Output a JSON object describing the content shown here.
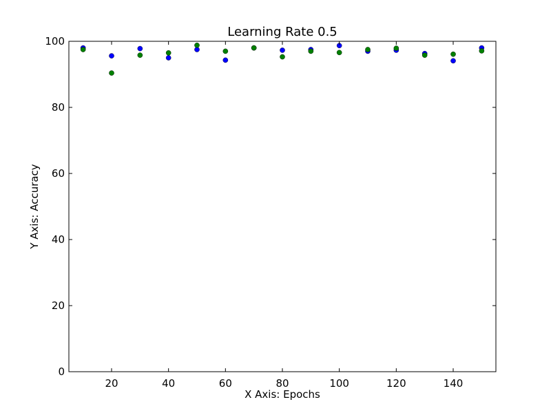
{
  "chart_data": {
    "type": "scatter",
    "title": "Learning Rate 0.5",
    "xlabel": "X Axis: Epochs",
    "ylabel": "Y Axis: Accuracy",
    "xlim": [
      5,
      155
    ],
    "ylim": [
      0,
      100
    ],
    "xticks": [
      20,
      40,
      60,
      80,
      100,
      120,
      140
    ],
    "yticks": [
      0,
      20,
      40,
      60,
      80,
      100
    ],
    "grid": false,
    "x": [
      10,
      20,
      30,
      40,
      50,
      60,
      70,
      80,
      90,
      100,
      110,
      120,
      130,
      140,
      150
    ],
    "series": [
      {
        "color": "#0000ff",
        "values": [
          98.0,
          95.6,
          97.8,
          95.0,
          97.5,
          94.3,
          98.0,
          97.3,
          97.5,
          98.7,
          97.0,
          97.3,
          96.3,
          94.1,
          98.0
        ]
      },
      {
        "color": "#008000",
        "values": [
          97.5,
          90.4,
          95.8,
          96.5,
          98.8,
          97.0,
          98.0,
          95.3,
          97.0,
          96.6,
          97.5,
          97.9,
          95.8,
          96.1,
          97.1
        ]
      }
    ]
  }
}
